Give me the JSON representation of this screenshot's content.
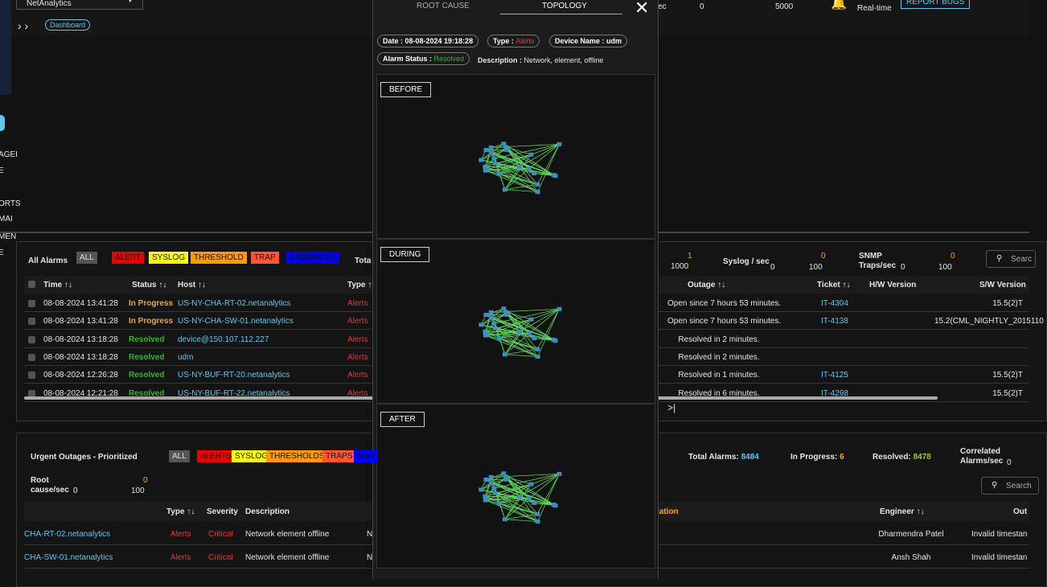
{
  "header": {
    "app_select": "NetAnalytics",
    "breadcrumb": "Dashboard",
    "stat_label_partial": "ec",
    "stat_value_1": "0",
    "stat_value_2": "5000",
    "realtime": "Real-time",
    "report_bugs": "REPORT BUGS"
  },
  "sidebar": {
    "items": [
      "AGEI",
      "E",
      "ORTS",
      "MAI",
      "MEN",
      "E"
    ]
  },
  "modal": {
    "tabs": [
      "ROOT CAUSE",
      "TOPOLOGY"
    ],
    "date": "Date : 08-08-2024 19:18:28",
    "type_label": "Type :",
    "type_value": "Alerts",
    "device": "Device Name : udm",
    "status_label": "Alarm Status :",
    "status_value": "Resolved",
    "description_label": "Description :",
    "description_value": "Network, element, offline",
    "panels": [
      "BEFORE",
      "DURING",
      "AFTER"
    ]
  },
  "alarms": {
    "title": "All Alarms",
    "filters": [
      "ALL",
      "ALERT",
      "SYSLOG",
      "THRESHOLD",
      "TRAP",
      "ANOMALIES"
    ],
    "total_partial": "Tota",
    "stats": {
      "a_value": "1",
      "a_max": "1000",
      "syslog_label": "Syslog / sec",
      "syslog_min": "0",
      "syslog_value": "0",
      "syslog_max": "100",
      "snmp_label": "SNMP Traps/sec",
      "snmp_min": "0",
      "snmp_value": "0",
      "snmp_max": "100"
    },
    "search": "Searc",
    "columns": {
      "time": "Time ↑↓",
      "status": "Status ↑↓",
      "host": "Host ↑↓",
      "type": "Type ↑",
      "outage": "Outage ↑↓",
      "ticket": "Ticket ↑↓",
      "hw": "H/W Version",
      "sw": "S/W Version"
    },
    "rows": [
      {
        "time": "08-08-2024 13:41:28",
        "status": "In Progress",
        "host": "US-NY-CHA-RT-02.netanalytics",
        "type": "Alerts",
        "outage": "Open since 7 hours 53 minutes.",
        "ticket": "IT-4304",
        "sw": "15.5(2)T"
      },
      {
        "time": "08-08-2024 13:41:28",
        "status": "In Progress",
        "host": "US-NY-CHA-SW-01.netanalytics",
        "type": "Alerts",
        "outage": "Open since 7 hours 53 minutes.",
        "ticket": "IT-4138",
        "sw": "15.2(CML_NIGHTLY_2015110"
      },
      {
        "time": "08-08-2024 13:18:28",
        "status": "Resolved",
        "host": "device@150.107.112.227",
        "type": "Alerts",
        "outage": "Resolved in 2 minutes."
      },
      {
        "time": "08-08-2024 13:18:28",
        "status": "Resolved",
        "host": "udm",
        "type": "Alerts",
        "outage": "Resolved in 2 minutes."
      },
      {
        "time": "08-08-2024 12:26:28",
        "status": "Resolved",
        "host": "US-NY-BUF-RT-20.netanalytics",
        "type": "Alerts",
        "outage": "Resolved in 1 minutes.",
        "ticket": "IT-4125",
        "sw": "15.5(2)T"
      },
      {
        "time": "08-08-2024 12:21:28",
        "status": "Resolved",
        "host": "US-NY-BUF-RT-22.netanalytics",
        "type": "Alerts",
        "outage": "Resolved in 6 minutes.",
        "ticket": "IT-4298",
        "sw": "15.5(2)T"
      }
    ]
  },
  "outages": {
    "title": "Urgent Outages - Prioritized",
    "filters": [
      "ALL",
      "ALERTS",
      "SYSLOG",
      "THRESHOLDS",
      "TRAPS",
      "ANO"
    ],
    "root_cause_label": "Root cause/sec",
    "root_cause_min": "0",
    "root_cause_value": "0",
    "root_cause_max": "100",
    "total_label": "Total Alarms:",
    "total_value": "8484",
    "progress_label": "In Progress:",
    "progress_value": "6",
    "resolved_label": "Resolved:",
    "resolved_value": "8478",
    "correlated_label": "Correlated Alarms/sec",
    "correlated_value": "0",
    "search": "Search",
    "columns": {
      "type": "Type ↑↓",
      "severity": "Severity",
      "description": "Description",
      "remediation_partial": "iation",
      "engineer": "Engineer ↑↓",
      "outage_partial": "Out"
    },
    "rows": [
      {
        "host": "CHA-RT-02.netanalytics",
        "type": "Alerts",
        "severity": "Critical",
        "description": "Network element offline",
        "extra": "N",
        "engineer": "Dharmendra Patel",
        "outage": "Invalid timestan"
      },
      {
        "host": "CHA-SW-01.netanalytics",
        "type": "Alerts",
        "severity": "Critical",
        "description": "Network element offline",
        "extra": "N",
        "engineer": "Ansh Shah",
        "outage": "Invalid timestan"
      }
    ]
  }
}
